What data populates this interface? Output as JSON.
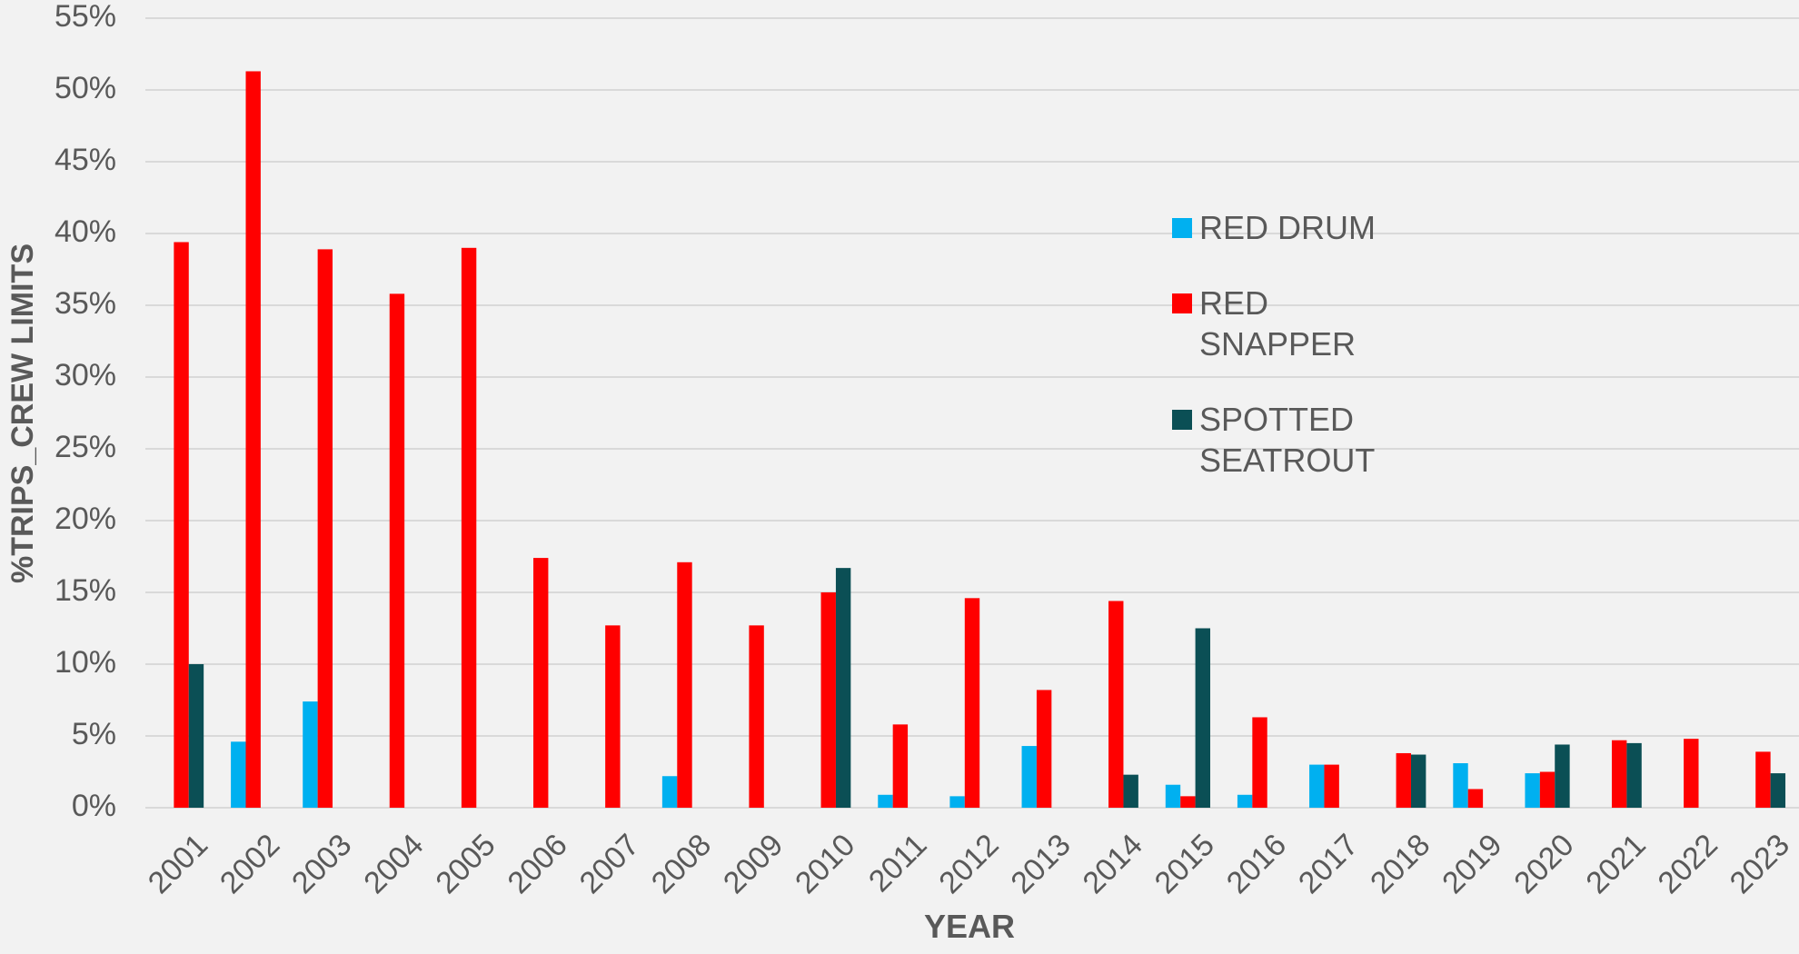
{
  "chart_data": {
    "type": "bar",
    "x_label": "YEAR",
    "y_label": "%TRIPS_CREW LIMITS",
    "categories": [
      "2001",
      "2002",
      "2003",
      "2004",
      "2005",
      "2006",
      "2007",
      "2008",
      "2009",
      "2010",
      "2011",
      "2012",
      "2013",
      "2014",
      "2015",
      "2016",
      "2017",
      "2018",
      "2019",
      "2020",
      "2021",
      "2022",
      "2023"
    ],
    "series": [
      {
        "name": "RED DRUM",
        "color": "#00b0f0",
        "values": [
          null,
          4.6,
          7.4,
          null,
          null,
          null,
          null,
          2.2,
          null,
          null,
          0.9,
          0.8,
          4.3,
          null,
          1.6,
          0.9,
          3.0,
          null,
          3.1,
          2.4,
          null,
          null,
          null
        ]
      },
      {
        "name": "RED SNAPPER",
        "color": "#ff0000",
        "values": [
          39.4,
          51.3,
          38.9,
          35.8,
          39.0,
          17.4,
          12.7,
          17.1,
          12.7,
          15.0,
          5.8,
          14.6,
          8.2,
          14.4,
          0.8,
          6.3,
          3.0,
          3.8,
          1.3,
          2.5,
          4.7,
          4.8,
          3.9
        ]
      },
      {
        "name": "SPOTTED SEATROUT",
        "color": "#0b4f55",
        "values": [
          10.0,
          null,
          null,
          null,
          null,
          null,
          null,
          null,
          null,
          16.7,
          null,
          null,
          null,
          2.3,
          12.5,
          null,
          null,
          3.7,
          null,
          4.4,
          4.5,
          null,
          2.4
        ]
      }
    ],
    "ylim": [
      0,
      55
    ],
    "yticks": [
      {
        "value": 0,
        "label": "0%"
      },
      {
        "value": 5,
        "label": "5%"
      },
      {
        "value": 10,
        "label": "10%"
      },
      {
        "value": 15,
        "label": "15%"
      },
      {
        "value": 20,
        "label": "20%"
      },
      {
        "value": 25,
        "label": "25%"
      },
      {
        "value": 30,
        "label": "30%"
      },
      {
        "value": 35,
        "label": "35%"
      },
      {
        "value": 40,
        "label": "40%"
      },
      {
        "value": 45,
        "label": "45%"
      },
      {
        "value": 50,
        "label": "50%"
      },
      {
        "value": 55,
        "label": "55%"
      }
    ],
    "grid": true,
    "legend": "right"
  }
}
